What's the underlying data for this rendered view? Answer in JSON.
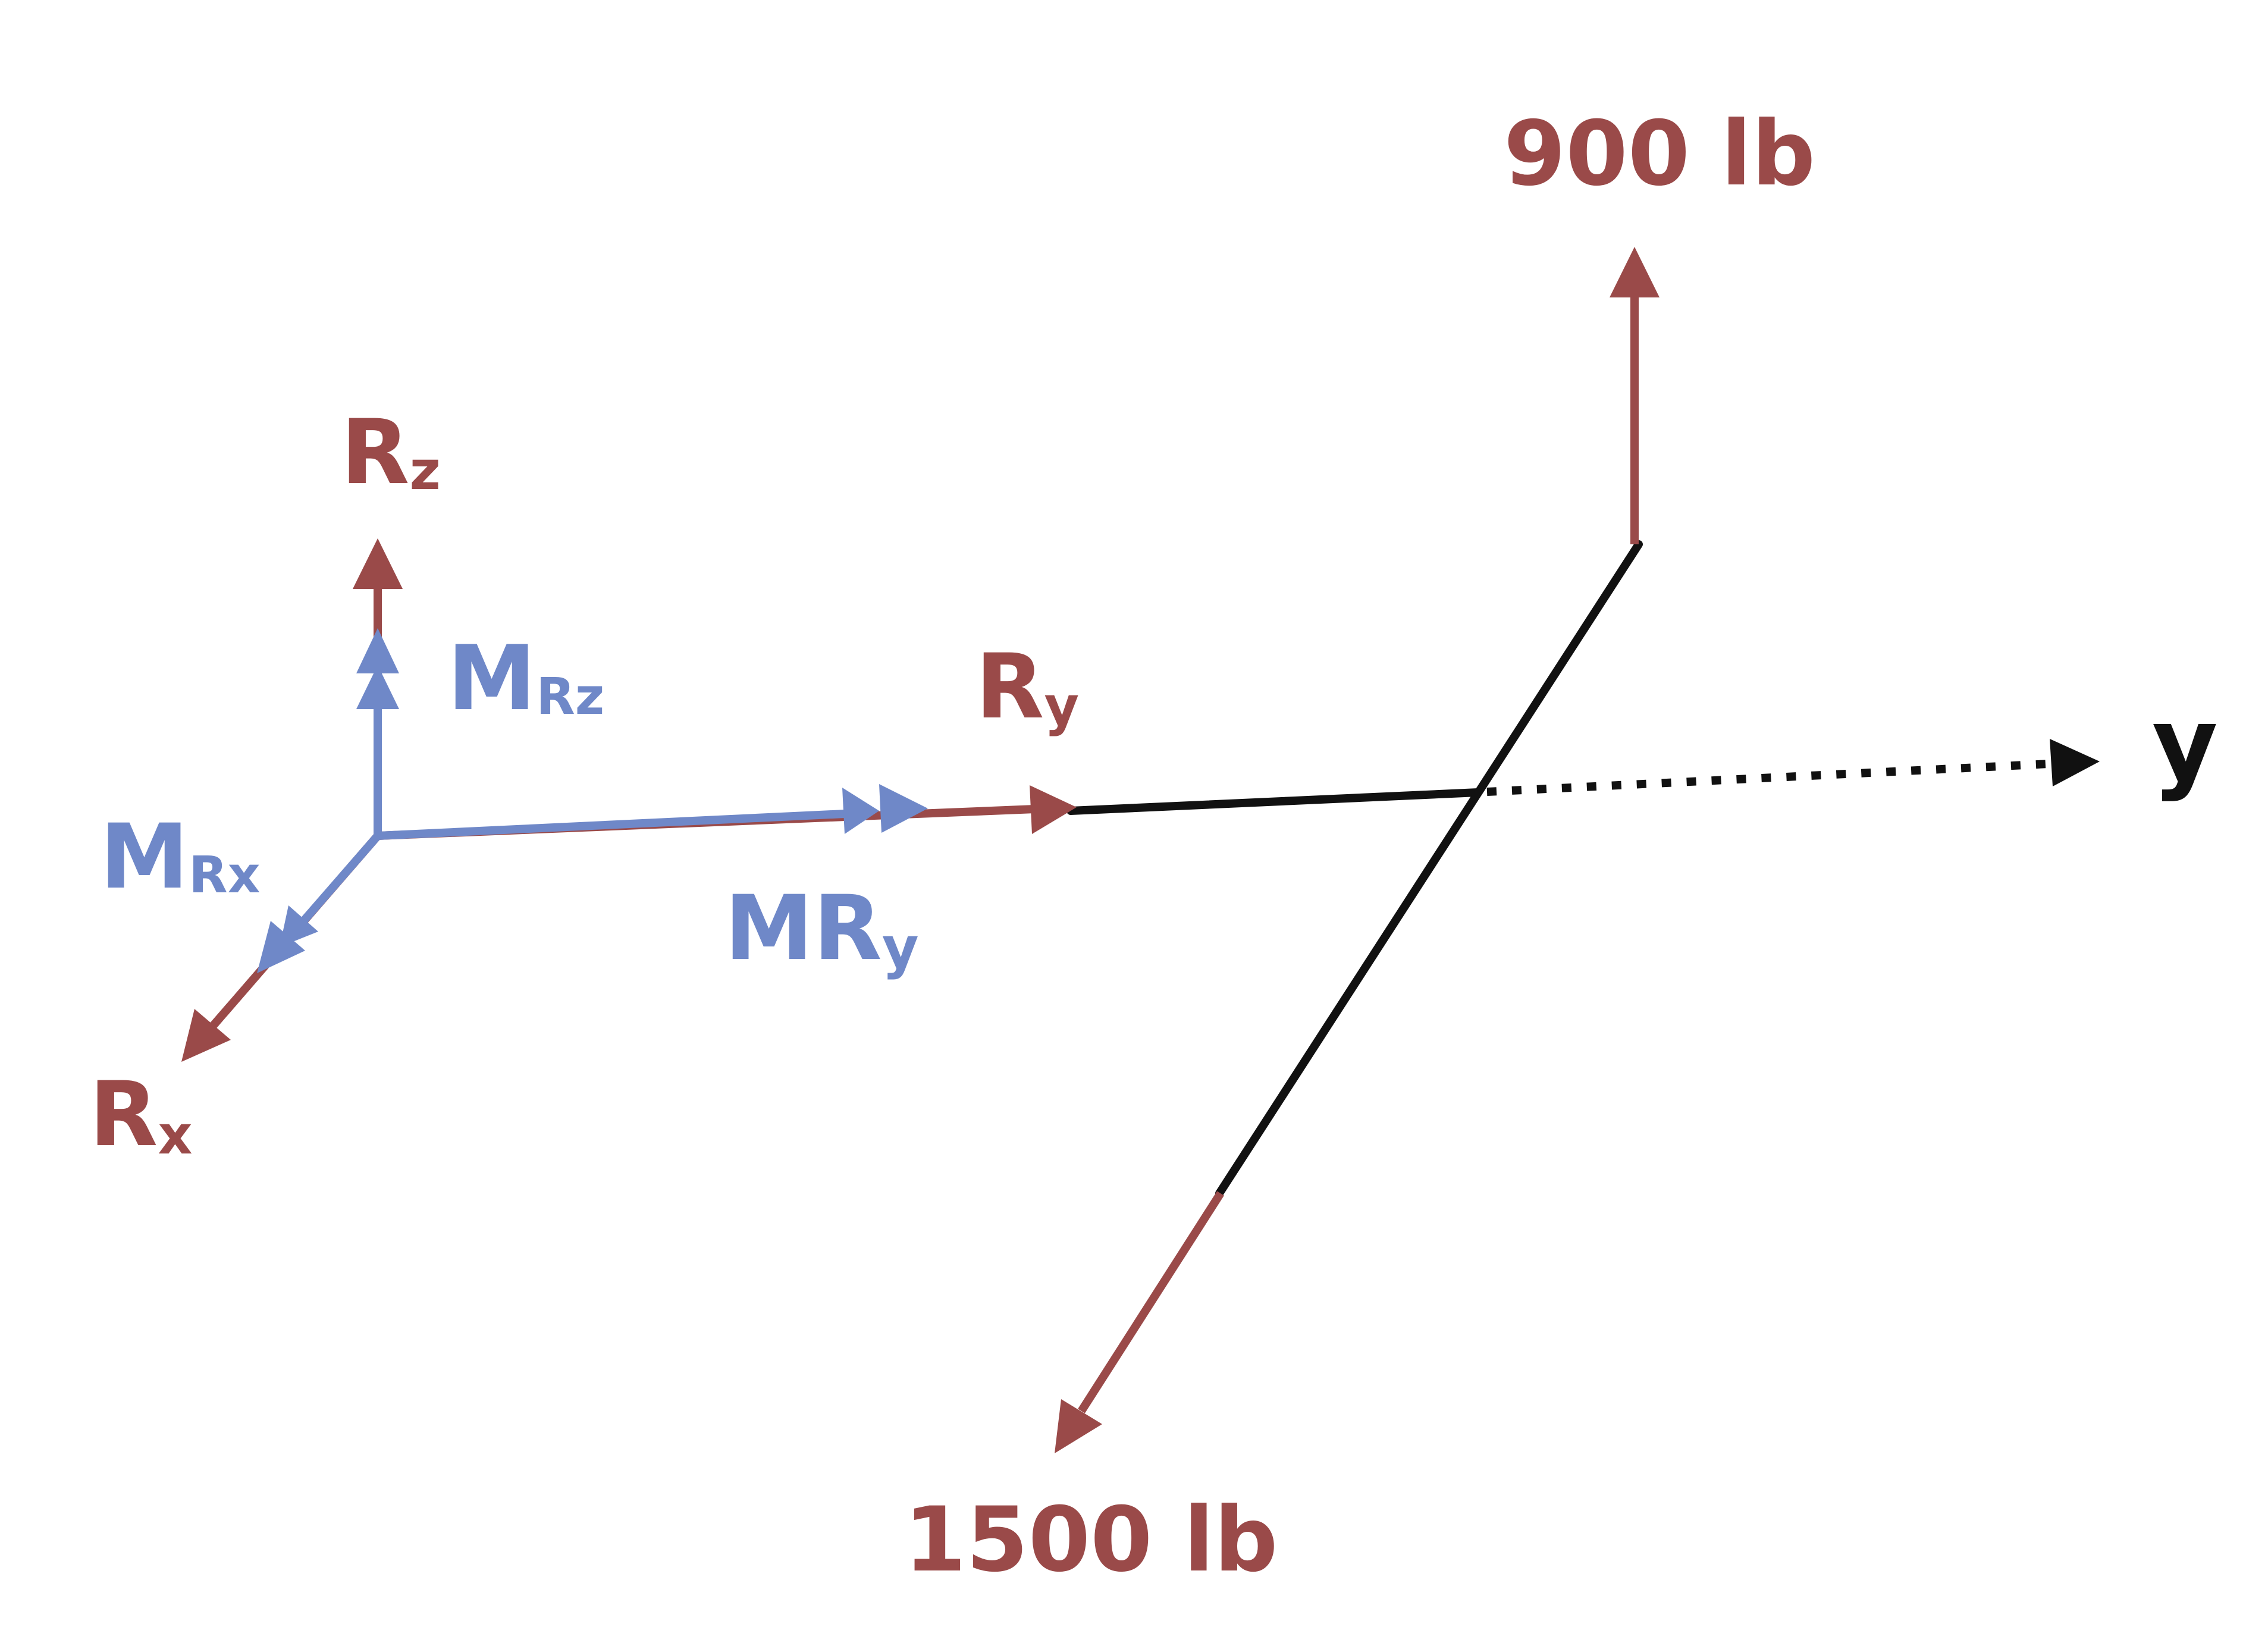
{
  "colors": {
    "force": "#9a4a49",
    "moment": "#6f88c8",
    "member": "#111111"
  },
  "labels": {
    "force_900": "900 lb",
    "force_1500": "1500 lb",
    "axis_y": "y",
    "Rz": {
      "main": "R",
      "sub": "z"
    },
    "Ry": {
      "main": "R",
      "sub": "y"
    },
    "Rx": {
      "main": "R",
      "sub": "x"
    },
    "MRz": {
      "main": "M",
      "sub": "Rz"
    },
    "MRx": {
      "main": "M",
      "sub": "Rx"
    },
    "MRy": {
      "main": "MR",
      "sub": "y"
    }
  }
}
